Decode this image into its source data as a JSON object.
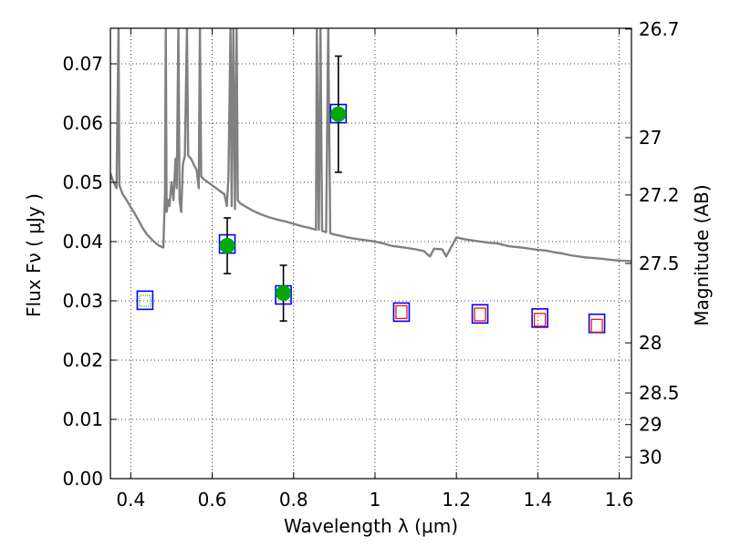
{
  "chart_data": {
    "type": "scatter",
    "xlabel": "Wavelength  λ (μm)",
    "ylabel": "Flux  Fν  ( μJy )",
    "ylabel_right": "Magnitude (AB)",
    "xlim": [
      0.35,
      1.63
    ],
    "ylim": [
      0.0,
      0.076
    ],
    "grid": true,
    "x_ticks": [
      0.4,
      0.6,
      0.8,
      1.0,
      1.2,
      1.4,
      1.6
    ],
    "x_tick_labels": [
      "0.4",
      "0.6",
      "0.8",
      "1",
      "1.2",
      "1.4",
      "1.6"
    ],
    "y_ticks": [
      0.0,
      0.01,
      0.02,
      0.03,
      0.04,
      0.05,
      0.06,
      0.07
    ],
    "y_tick_labels": [
      "0.00",
      "0.01",
      "0.02",
      "0.03",
      "0.04",
      "0.05",
      "0.06",
      "0.07"
    ],
    "mag_ticks": [
      26.7,
      27,
      27.2,
      27.5,
      28,
      28.5,
      29,
      30
    ],
    "mag_tick_labels": [
      "26.7",
      "27",
      "27.2",
      "27.5",
      "28",
      "28.5",
      "29",
      "30"
    ],
    "model_spectrum": {
      "color": "#808080",
      "points": [
        [
          0.35,
          0.0515
        ],
        [
          0.355,
          0.0505
        ],
        [
          0.36,
          0.0497
        ],
        [
          0.365,
          0.049
        ],
        [
          0.37,
          0.076
        ],
        [
          0.372,
          0.0495
        ],
        [
          0.38,
          0.048
        ],
        [
          0.39,
          0.047
        ],
        [
          0.4,
          0.0458
        ],
        [
          0.41,
          0.0447
        ],
        [
          0.42,
          0.0435
        ],
        [
          0.43,
          0.0422
        ],
        [
          0.44,
          0.0412
        ],
        [
          0.45,
          0.0405
        ],
        [
          0.46,
          0.0398
        ],
        [
          0.47,
          0.0393
        ],
        [
          0.48,
          0.039
        ],
        [
          0.484,
          0.048
        ],
        [
          0.486,
          0.076
        ],
        [
          0.488,
          0.045
        ],
        [
          0.492,
          0.047
        ],
        [
          0.495,
          0.046
        ],
        [
          0.5,
          0.05
        ],
        [
          0.505,
          0.047
        ],
        [
          0.51,
          0.054
        ],
        [
          0.513,
          0.049
        ],
        [
          0.517,
          0.076
        ],
        [
          0.52,
          0.047
        ],
        [
          0.524,
          0.045
        ],
        [
          0.528,
          0.053
        ],
        [
          0.533,
          0.0545
        ],
        [
          0.538,
          0.076
        ],
        [
          0.541,
          0.0545
        ],
        [
          0.548,
          0.054
        ],
        [
          0.555,
          0.053
        ],
        [
          0.562,
          0.052
        ],
        [
          0.567,
          0.049
        ],
        [
          0.57,
          0.076
        ],
        [
          0.573,
          0.051
        ],
        [
          0.58,
          0.0505
        ],
        [
          0.59,
          0.05
        ],
        [
          0.6,
          0.0495
        ],
        [
          0.61,
          0.049
        ],
        [
          0.62,
          0.0485
        ],
        [
          0.63,
          0.048
        ],
        [
          0.636,
          0.046
        ],
        [
          0.64,
          0.051
        ],
        [
          0.645,
          0.076
        ],
        [
          0.648,
          0.046
        ],
        [
          0.652,
          0.076
        ],
        [
          0.656,
          0.0455
        ],
        [
          0.66,
          0.076
        ],
        [
          0.663,
          0.047
        ],
        [
          0.668,
          0.0465
        ],
        [
          0.68,
          0.046
        ],
        [
          0.7,
          0.0452
        ],
        [
          0.72,
          0.0446
        ],
        [
          0.74,
          0.0441
        ],
        [
          0.76,
          0.0437
        ],
        [
          0.78,
          0.0434
        ],
        [
          0.8,
          0.043
        ],
        [
          0.82,
          0.0426
        ],
        [
          0.84,
          0.0423
        ],
        [
          0.855,
          0.042
        ],
        [
          0.857,
          0.076
        ],
        [
          0.862,
          0.042
        ],
        [
          0.866,
          0.076
        ],
        [
          0.87,
          0.0418
        ],
        [
          0.88,
          0.0416
        ],
        [
          0.885,
          0.076
        ],
        [
          0.89,
          0.0414
        ],
        [
          0.9,
          0.0412
        ],
        [
          0.92,
          0.0409
        ],
        [
          0.94,
          0.0406
        ],
        [
          0.96,
          0.0404
        ],
        [
          0.98,
          0.0402
        ],
        [
          1.0,
          0.04
        ],
        [
          1.02,
          0.0397
        ],
        [
          1.04,
          0.0393
        ],
        [
          1.06,
          0.0391
        ],
        [
          1.08,
          0.0389
        ],
        [
          1.1,
          0.0387
        ],
        [
          1.12,
          0.0384
        ],
        [
          1.135,
          0.0375
        ],
        [
          1.145,
          0.0388
        ],
        [
          1.165,
          0.0387
        ],
        [
          1.175,
          0.0375
        ],
        [
          1.185,
          0.0388
        ],
        [
          1.2,
          0.0407
        ],
        [
          1.22,
          0.0404
        ],
        [
          1.25,
          0.0401
        ],
        [
          1.28,
          0.0398
        ],
        [
          1.3,
          0.0397
        ],
        [
          1.33,
          0.0392
        ],
        [
          1.36,
          0.039
        ],
        [
          1.38,
          0.0388
        ],
        [
          1.4,
          0.0386
        ],
        [
          1.42,
          0.0385
        ],
        [
          1.44,
          0.0382
        ],
        [
          1.46,
          0.038
        ],
        [
          1.48,
          0.0377
        ],
        [
          1.5,
          0.0375
        ],
        [
          1.52,
          0.0373
        ],
        [
          1.54,
          0.0372
        ],
        [
          1.56,
          0.0371
        ],
        [
          1.58,
          0.0369
        ],
        [
          1.6,
          0.0368
        ],
        [
          1.63,
          0.0367
        ]
      ]
    },
    "observed": {
      "color": "#00aa00",
      "points": [
        {
          "x": 0.637,
          "y": 0.0393,
          "err": 0.0047
        },
        {
          "x": 0.775,
          "y": 0.0313,
          "err": 0.0047
        },
        {
          "x": 0.91,
          "y": 0.0615,
          "err": 0.0098
        }
      ]
    },
    "model_photometry": {
      "color": "#0000ff",
      "points": [
        {
          "x": 0.435,
          "y": 0.0301
        },
        {
          "x": 0.637,
          "y": 0.0396
        },
        {
          "x": 0.775,
          "y": 0.031
        },
        {
          "x": 0.91,
          "y": 0.0616
        },
        {
          "x": 1.065,
          "y": 0.0281
        },
        {
          "x": 1.258,
          "y": 0.0278
        },
        {
          "x": 1.405,
          "y": 0.0271
        },
        {
          "x": 1.545,
          "y": 0.0262
        }
      ]
    },
    "upper_limits": {
      "color": "#ff0000",
      "points": [
        {
          "x": 1.065,
          "y": 0.0281
        },
        {
          "x": 1.258,
          "y": 0.0277
        },
        {
          "x": 1.405,
          "y": 0.0268
        },
        {
          "x": 1.545,
          "y": 0.0258
        }
      ]
    },
    "lower_band_marker": {
      "color": "#00aa00",
      "points": [
        {
          "x": 0.435,
          "y": 0.03
        }
      ]
    }
  }
}
